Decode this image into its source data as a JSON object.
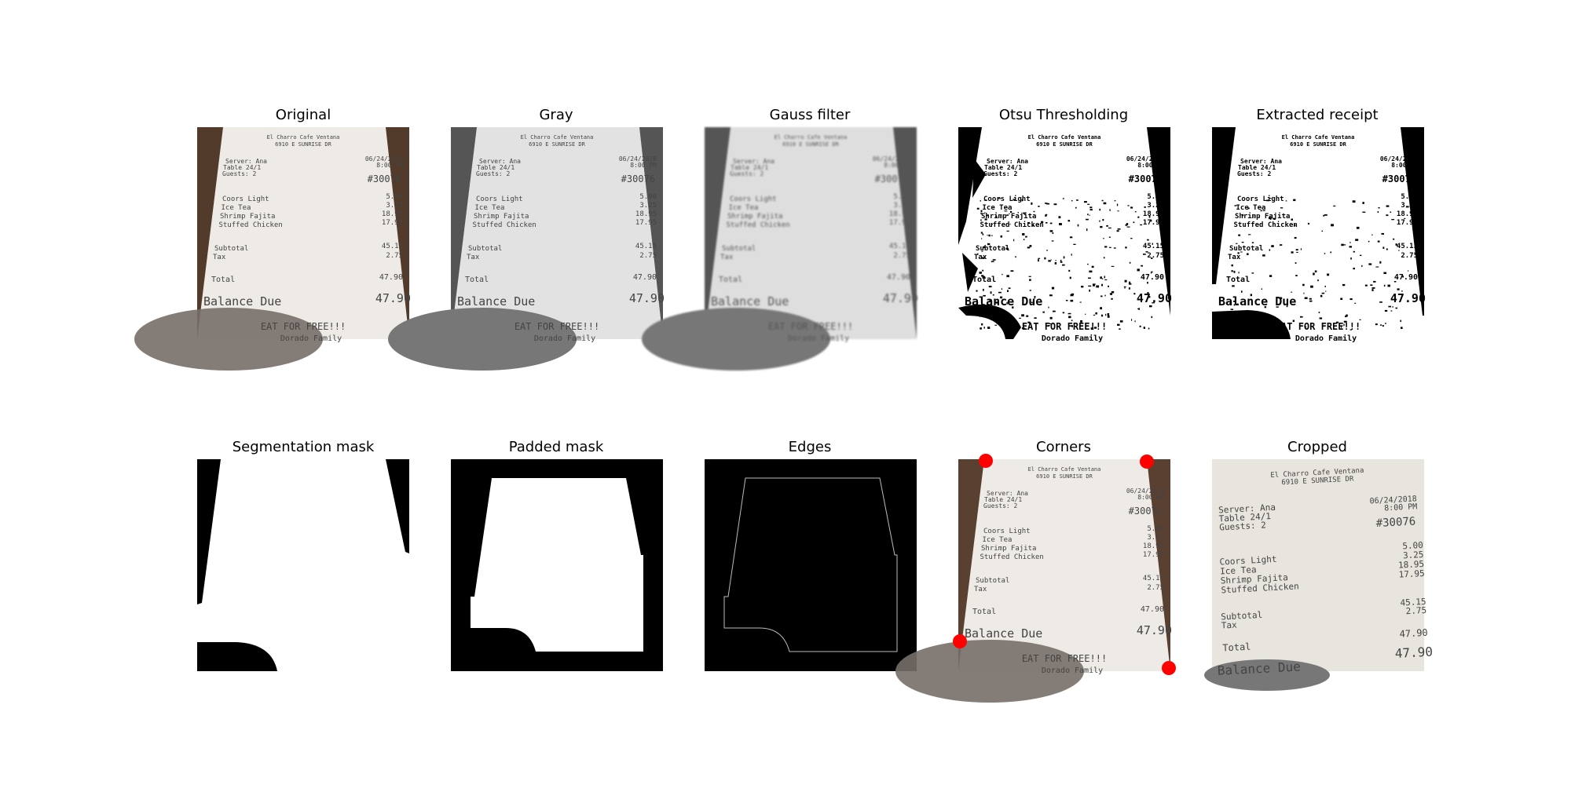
{
  "figure": {
    "titles": {
      "original": "Original",
      "gray": "Gray",
      "gauss": "Gauss filter",
      "otsu": "Otsu Thresholding",
      "extracted": "Extracted receipt",
      "segmentation": "Segmentation mask",
      "padded": "Padded mask",
      "edges": "Edges",
      "corners": "Corners",
      "cropped": "Cropped"
    }
  },
  "receipt": {
    "header1": "El Charro Cafe Ventana",
    "header2": "6910 E SUNRISE DR",
    "server": "Server: Ana",
    "table": "Table 24/1",
    "guests": "Guests: 2",
    "date": "06/24/2018",
    "time": "8:00 PM",
    "order": "#30076",
    "items": [
      {
        "name": "Coors Light",
        "price": "5.00"
      },
      {
        "name": "Ice Tea",
        "price": "3.25"
      },
      {
        "name": "Shrimp Fajita",
        "price": "18.95"
      },
      {
        "name": "Stuffed Chicken",
        "price": "17.95"
      }
    ],
    "subtotal_label": "Subtotal",
    "subtotal": "45.15",
    "tax_label": "Tax",
    "tax": "2.75",
    "total_label": "Total",
    "total": "47.90",
    "balance_label": "Balance Due",
    "balance": "47.90",
    "footer": "EAT FOR FREE!!!",
    "footer_partial": "Dorado Family"
  },
  "colors": {
    "table_wood": "#5a4030",
    "paper": "#eeebe6",
    "corner_marker": "#ff0000",
    "edge_line": "#bbbbbb"
  }
}
